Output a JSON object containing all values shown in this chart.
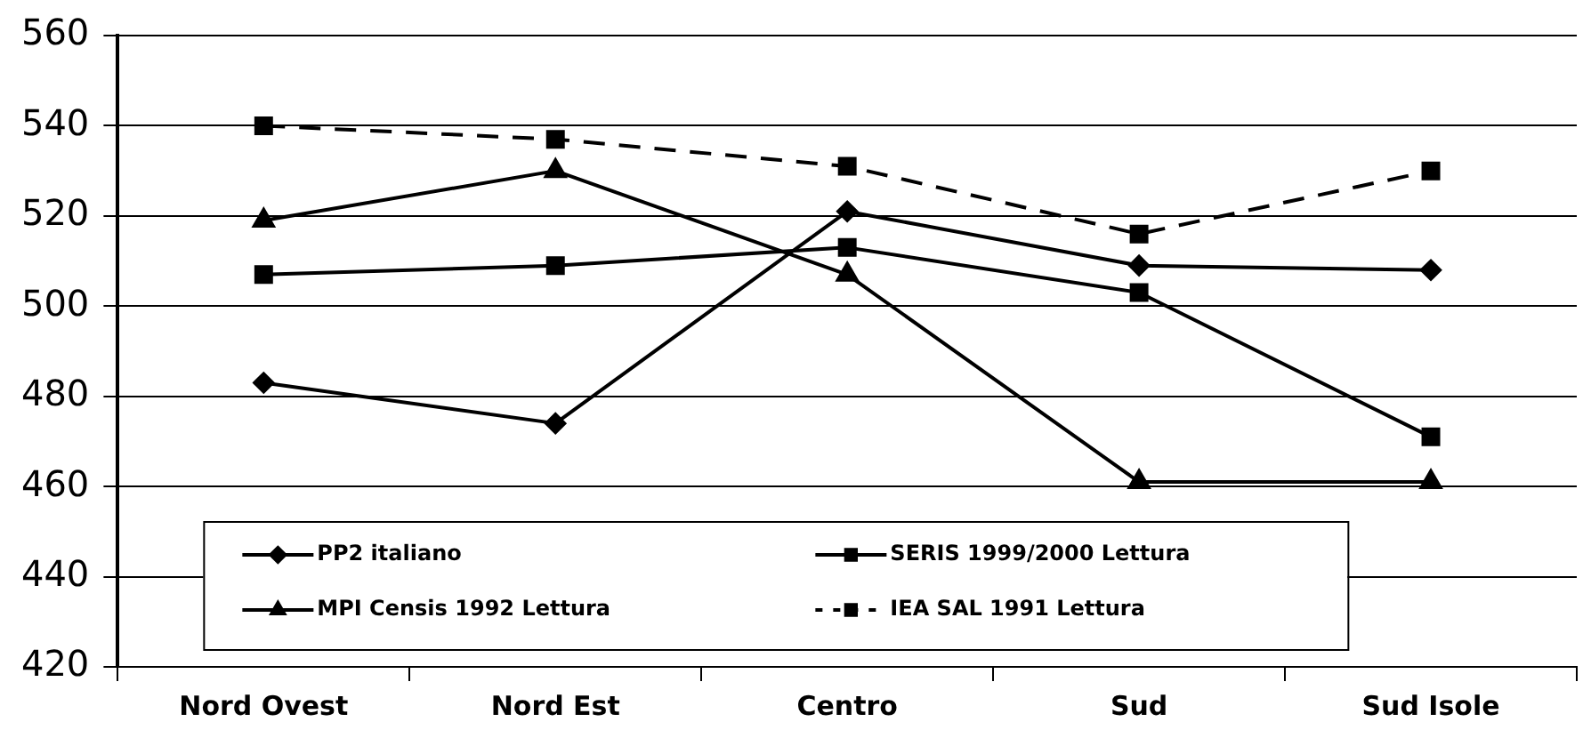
{
  "chart_data": {
    "type": "line",
    "categories": [
      "Nord Ovest",
      "Nord Est",
      "Centro",
      "Sud",
      "Sud Isole"
    ],
    "series": [
      {
        "name": "PP2 italiano",
        "color": "#000000",
        "marker": "diamond",
        "line_style": "solid",
        "values": [
          483,
          474,
          521,
          509,
          508
        ]
      },
      {
        "name": "SERIS 1999/2000 Lettura",
        "color": "#000000",
        "marker": "square",
        "line_style": "solid",
        "values": [
          507,
          509,
          513,
          503,
          471
        ]
      },
      {
        "name": "MPI Censis 1992 Lettura",
        "color": "#000000",
        "marker": "triangle",
        "line_style": "solid",
        "values": [
          519,
          530,
          507,
          461,
          461
        ]
      },
      {
        "name": "IEA SAL 1991 Lettura",
        "color": "#000000",
        "marker": "square",
        "line_style": "dashed",
        "values": [
          540,
          537,
          531,
          516,
          530
        ]
      }
    ],
    "ylim": [
      420,
      560
    ],
    "yticks": [
      420,
      440,
      460,
      480,
      500,
      520,
      540,
      560
    ],
    "grid": "y",
    "legend": "bottom"
  }
}
